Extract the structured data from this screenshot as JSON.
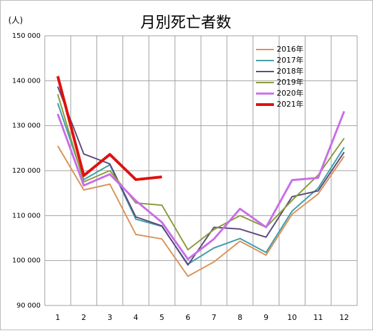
{
  "chart_data": {
    "type": "line",
    "title": "月別死亡者数",
    "y_label": "(人)",
    "categories": [
      "1",
      "2",
      "3",
      "4",
      "5",
      "6",
      "7",
      "8",
      "9",
      "10",
      "11",
      "12"
    ],
    "ylim": [
      90000,
      150000
    ],
    "yticks": [
      {
        "value": 90000,
        "label": "90 000"
      },
      {
        "value": 100000,
        "label": "100 000"
      },
      {
        "value": 110000,
        "label": "110 000"
      },
      {
        "value": 120000,
        "label": "120 000"
      },
      {
        "value": 130000,
        "label": "130 000"
      },
      {
        "value": 140000,
        "label": "140 000"
      },
      {
        "value": 150000,
        "label": "150 000"
      }
    ],
    "grid": true,
    "legend": "upper right",
    "series": [
      {
        "name": "2016年",
        "color": "#d9935a",
        "width": 2,
        "values": [
          125500,
          115700,
          117000,
          105800,
          104800,
          96500,
          99700,
          104300,
          101200,
          110300,
          114800,
          123200
        ]
      },
      {
        "name": "2017年",
        "color": "#3f9ea8",
        "width": 2,
        "values": [
          135000,
          118000,
          121300,
          109200,
          107600,
          99200,
          102800,
          104900,
          101800,
          111000,
          116100,
          125200
        ]
      },
      {
        "name": "2018年",
        "color": "#5c4a7c",
        "width": 2,
        "values": [
          138700,
          123700,
          121500,
          109700,
          107700,
          99000,
          107400,
          107000,
          105200,
          114200,
          115500,
          124100
        ]
      },
      {
        "name": "2019年",
        "color": "#8c9a3c",
        "width": 2,
        "values": [
          137000,
          117500,
          120000,
          112800,
          112300,
          102400,
          106900,
          110000,
          107400,
          113400,
          119000,
          127200
        ]
      },
      {
        "name": "2020年",
        "color": "#c86ee8",
        "width": 3,
        "values": [
          132600,
          116700,
          119200,
          113300,
          108500,
          100300,
          104800,
          111500,
          107400,
          117900,
          118400,
          133200
        ]
      },
      {
        "name": "2021年",
        "color": "#e01010",
        "width": 4,
        "values": [
          141000,
          118900,
          123600,
          118000,
          118600,
          null,
          null,
          null,
          null,
          null,
          null,
          null
        ]
      }
    ]
  }
}
